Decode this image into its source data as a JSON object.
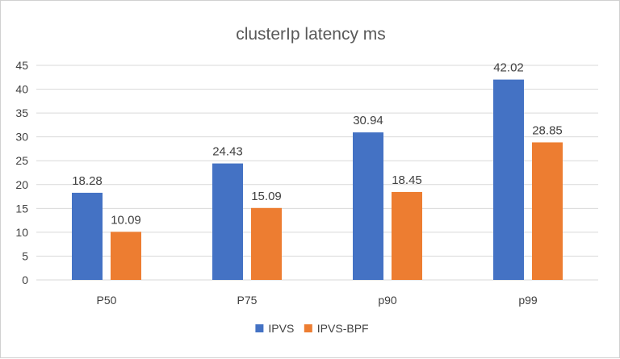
{
  "chart_data": {
    "type": "bar",
    "title": "clusterIp latency ms",
    "xlabel": "",
    "ylabel": "",
    "categories": [
      "P50",
      "P75",
      "p90",
      "p99"
    ],
    "series": [
      {
        "name": "IPVS",
        "values": [
          18.28,
          24.43,
          30.94,
          42.02
        ],
        "value_labels": [
          "18.28",
          "24.43",
          "30.94",
          "42.02"
        ],
        "color": "#4472C4"
      },
      {
        "name": "IPVS-BPF",
        "values": [
          10.09,
          15.09,
          18.45,
          28.85
        ],
        "value_labels": [
          "10.09",
          "15.09",
          "18.45",
          "28.85"
        ],
        "color": "#ED7D31"
      }
    ],
    "ylim": [
      0,
      45
    ],
    "yticks": [
      "0",
      "5",
      "10",
      "15",
      "20",
      "25",
      "30",
      "35",
      "40",
      "45"
    ],
    "grid": true,
    "legend": "bottom"
  }
}
